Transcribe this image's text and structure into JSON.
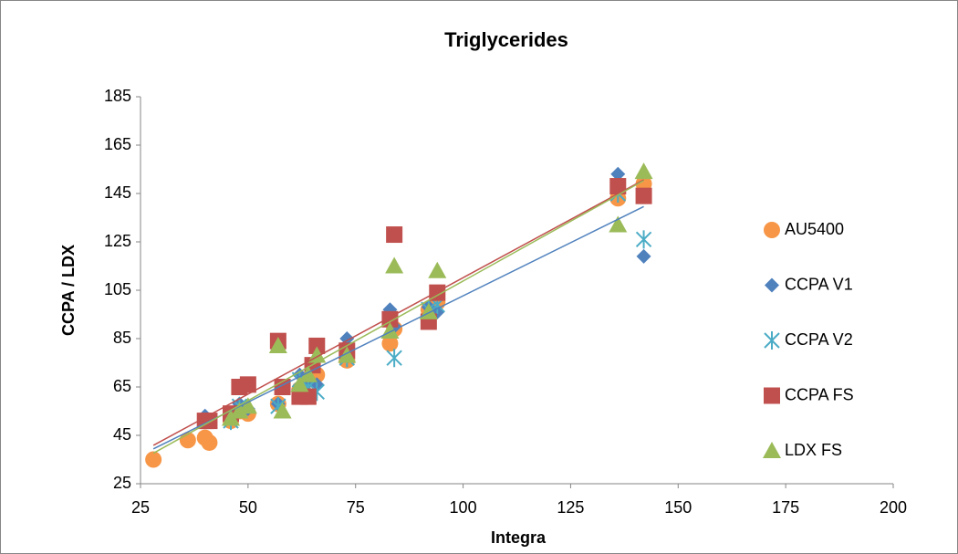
{
  "chart_data": {
    "type": "scatter",
    "title": "Triglycerides",
    "x_label": "Integra",
    "y_label": "CCPA / LDX",
    "xlim": [
      25,
      200
    ],
    "xticks": [
      25,
      50,
      75,
      100,
      125,
      150,
      175,
      200
    ],
    "ylim": [
      25,
      185
    ],
    "yticks": [
      25,
      45,
      65,
      85,
      105,
      125,
      145,
      165,
      185
    ],
    "legend": "right",
    "series": [
      {
        "name": "AU5400",
        "color": "#F79646",
        "marker": "circle",
        "trendline": false,
        "x": [
          28,
          36,
          40,
          41,
          46,
          48,
          50,
          57,
          62,
          64,
          66,
          73,
          83,
          84,
          92,
          94,
          136,
          142
        ],
        "y": [
          35,
          43,
          44,
          42,
          51,
          55,
          54,
          58,
          64,
          68,
          70,
          76,
          83,
          89,
          97,
          100,
          143,
          149
        ]
      },
      {
        "name": "CCPA V1",
        "color": "#4F81BD",
        "marker": "diamond",
        "trendline": true,
        "x": [
          40,
          48,
          50,
          57,
          62,
          64,
          66,
          73,
          83,
          84,
          92,
          94,
          136,
          142
        ],
        "y": [
          53,
          58,
          56,
          58,
          70,
          67,
          66,
          85,
          97,
          90,
          98,
          96,
          153,
          119
        ]
      },
      {
        "name": "CCPA V2",
        "color": "#4BACC6",
        "marker": "star",
        "trendline": false,
        "x": [
          46,
          48,
          57,
          62,
          64,
          66,
          73,
          84,
          92,
          94,
          136,
          142
        ],
        "y": [
          51,
          57,
          57,
          68,
          65,
          63,
          77,
          77,
          97,
          99,
          145,
          126
        ]
      },
      {
        "name": "CCPA FS",
        "color": "#C0504D",
        "marker": "square",
        "trendline": true,
        "x": [
          40,
          41,
          46,
          48,
          50,
          57,
          58,
          62,
          64,
          65,
          66,
          73,
          83,
          84,
          92,
          94,
          136,
          142
        ],
        "y": [
          51,
          51,
          54,
          65,
          66,
          84,
          65,
          61,
          61,
          74,
          82,
          80,
          93,
          128,
          92,
          104,
          148,
          144
        ]
      },
      {
        "name": "LDX FS",
        "color": "#9BBB59",
        "marker": "triangle",
        "trendline": true,
        "x": [
          46,
          48,
          50,
          57,
          58,
          62,
          64,
          66,
          73,
          83,
          84,
          92,
          94,
          136,
          142
        ],
        "y": [
          52,
          55,
          57,
          82,
          55,
          66,
          70,
          78,
          78,
          88,
          115,
          96,
          113,
          132,
          154
        ]
      }
    ]
  }
}
